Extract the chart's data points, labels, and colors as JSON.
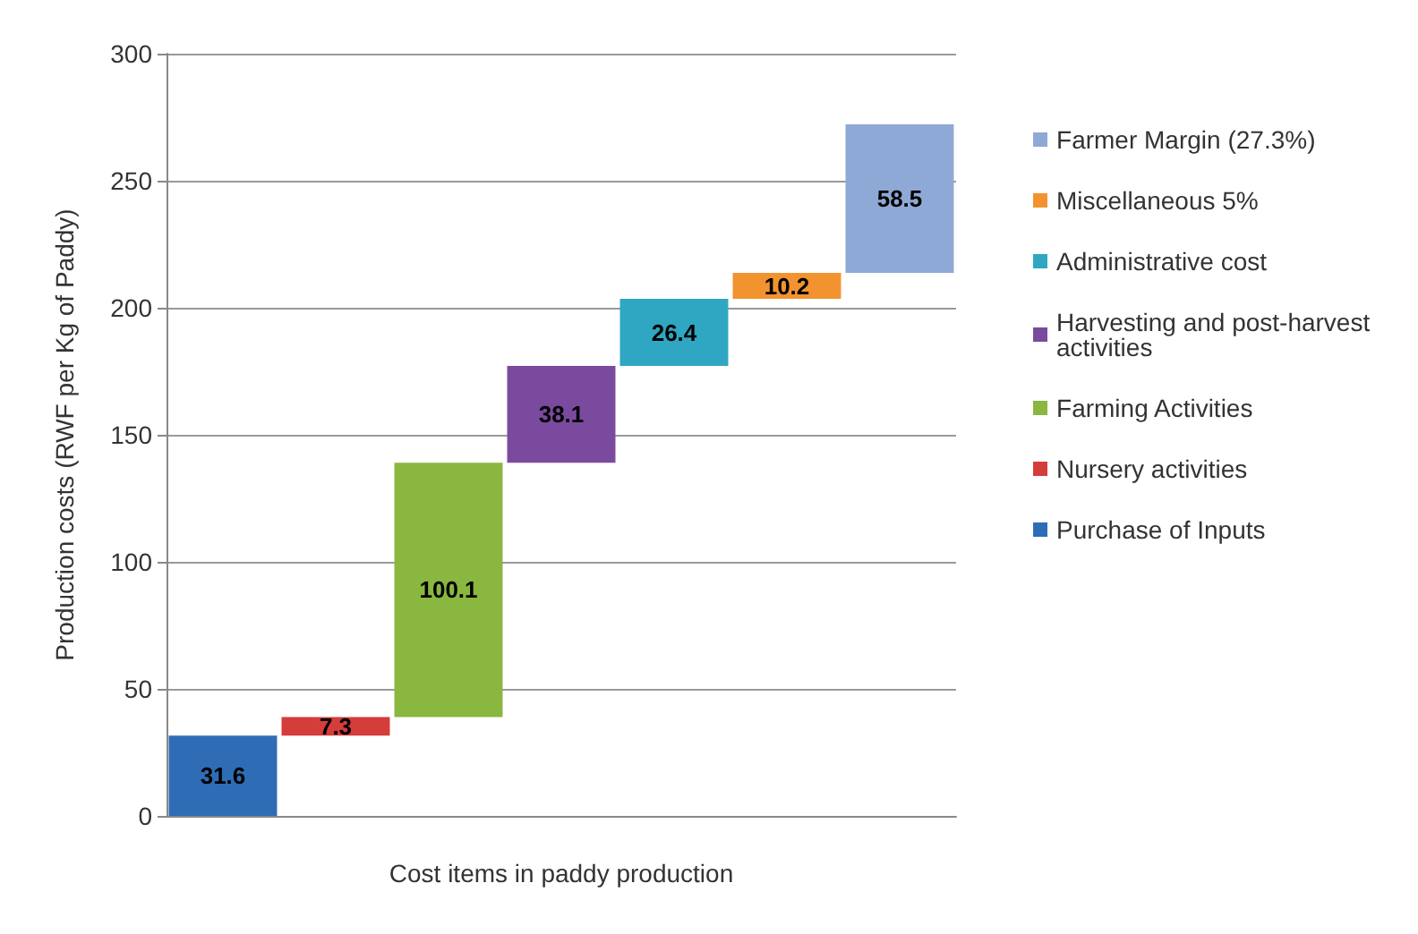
{
  "chart_data": {
    "type": "bar",
    "xlabel": "Cost items in paddy production",
    "ylabel": "Production costs (RWF per Kg of Paddy)",
    "categories": [
      null,
      null,
      null,
      null,
      null,
      null,
      null
    ],
    "series": [
      {
        "name": "Purchase of Inputs",
        "color": "#2e6db5",
        "values": [
          31.6,
          null,
          null,
          null,
          null,
          null,
          null
        ],
        "base": [
          0,
          null,
          null,
          null,
          null,
          null,
          null
        ]
      },
      {
        "name": "Nursery activities",
        "color": "#d43d3a",
        "values": [
          null,
          7.3,
          null,
          null,
          null,
          null,
          null
        ],
        "base": [
          null,
          31.6,
          null,
          null,
          null,
          null,
          null
        ]
      },
      {
        "name": "Farming Activities",
        "color": "#8ab73f",
        "values": [
          null,
          null,
          100.1,
          null,
          null,
          null,
          null
        ],
        "base": [
          null,
          null,
          38.9,
          null,
          null,
          null,
          null
        ]
      },
      {
        "name": "Harvesting and post-harvest activities",
        "color": "#7a4a9e",
        "values": [
          null,
          null,
          null,
          38.1,
          null,
          null,
          null
        ],
        "base": [
          null,
          null,
          null,
          139.0,
          null,
          null,
          null
        ]
      },
      {
        "name": "Administrative cost",
        "color": "#2fa7c2",
        "values": [
          null,
          null,
          null,
          null,
          26.4,
          null,
          null
        ],
        "base": [
          null,
          null,
          null,
          null,
          177.1,
          null,
          null
        ]
      },
      {
        "name": "Miscellaneous 5%",
        "color": "#f29330",
        "values": [
          null,
          null,
          null,
          null,
          null,
          10.2,
          null
        ],
        "base": [
          null,
          null,
          null,
          null,
          null,
          203.5,
          null
        ]
      },
      {
        "name": "Farmer Margin (27.3%)",
        "color": "#8ea9d6",
        "values": [
          null,
          null,
          null,
          null,
          null,
          null,
          58.5
        ],
        "base": [
          null,
          null,
          null,
          null,
          null,
          null,
          213.7
        ]
      }
    ],
    "ylim": [
      0,
      300
    ],
    "yticks": [
      0,
      50,
      100,
      150,
      200,
      250,
      300
    ],
    "grid": "y",
    "legend": "right",
    "data_labels": true
  }
}
